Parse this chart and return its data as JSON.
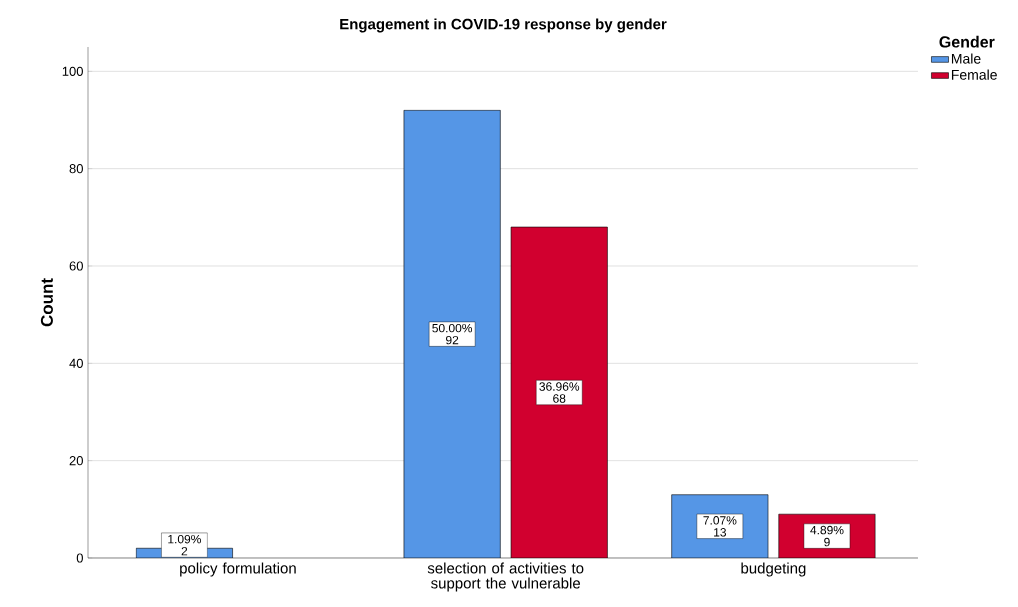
{
  "chart_data": {
    "type": "bar",
    "title": "Engagement in COVID-19 response by gender",
    "ylabel": "Count",
    "legend_title": "Gender",
    "categories": [
      "policy formulation",
      "selection of activities to support the vulnerable",
      "budgeting"
    ],
    "series": [
      {
        "name": "Male",
        "color": "#5596e6",
        "values": [
          2,
          92,
          13
        ],
        "value_labels": [
          "1.09% 2",
          "50.00% 92",
          "7.07% 13"
        ]
      },
      {
        "name": "Female",
        "color": "#d1002f",
        "values": [
          null,
          68,
          9
        ],
        "value_labels": [
          null,
          "36.96% 68",
          "4.89% 9"
        ]
      }
    ],
    "ylim": [
      0,
      105
    ],
    "yticks": [
      0,
      20,
      40,
      60,
      80,
      100
    ],
    "grid": "y",
    "legend": "right"
  }
}
